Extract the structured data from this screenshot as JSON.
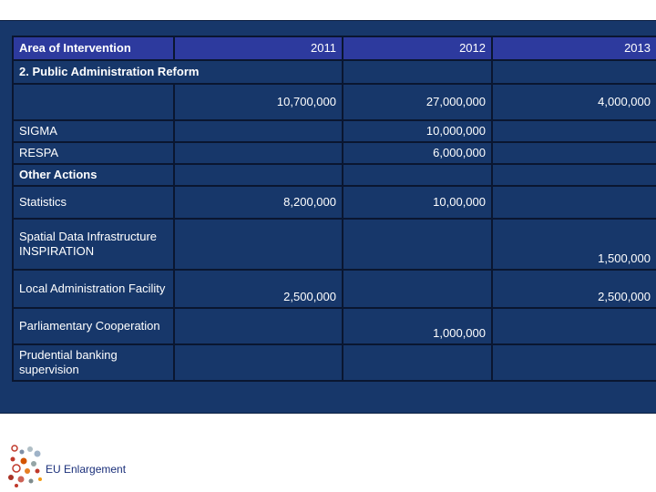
{
  "table": {
    "headers": [
      "Area of Intervention",
      "2011",
      "2012",
      "2013"
    ],
    "section": "2. Public Administration Reform",
    "totals": {
      "y2011": "10,700,000",
      "y2012": "27,000,000",
      "y2013": "4,000,000"
    },
    "rows": [
      {
        "area": "SIGMA",
        "y2011": "",
        "y2012": "10,000,000",
        "y2013": ""
      },
      {
        "area": "RESPA",
        "y2011": "",
        "y2012": "6,000,000",
        "y2013": ""
      },
      {
        "area": "Other Actions",
        "y2011": "",
        "y2012": "",
        "y2013": ""
      },
      {
        "area": "Statistics",
        "y2011": "8,200,000",
        "y2012": "10,00,000",
        "y2013": ""
      },
      {
        "area": "Spatial Data Infrastructure INSPIRATION",
        "y2011": "",
        "y2012": "",
        "y2013": "1,500,000"
      },
      {
        "area": "Local Administration Facility",
        "y2011": "2,500,000",
        "y2012": "",
        "y2013": "2,500,000"
      },
      {
        "area": "Parliamentary Cooperation",
        "y2011": "",
        "y2012": "1,000,000",
        "y2013": ""
      },
      {
        "area": "Prudential banking supervision",
        "y2011": "",
        "y2012": "",
        "y2013": ""
      }
    ]
  },
  "footer": {
    "logo_text": "EU Enlargement"
  },
  "colors": {
    "panel": "#17376a",
    "header": "#2d3a9e",
    "border": "#0a1630"
  }
}
